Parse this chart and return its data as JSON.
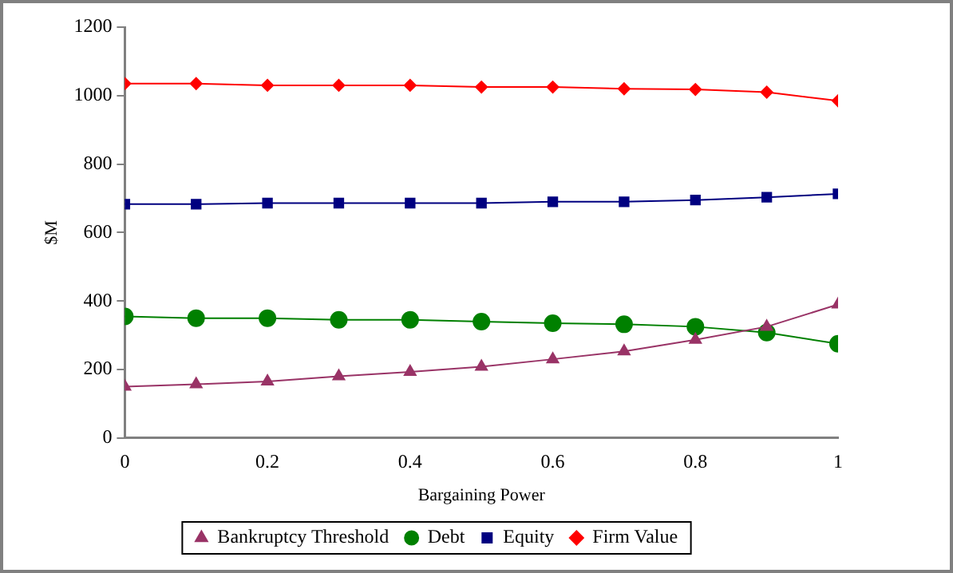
{
  "chart_data": {
    "type": "line",
    "xlabel": "Bargaining Power",
    "ylabel": "$M",
    "x": [
      0,
      0.1,
      0.2,
      0.3,
      0.4,
      0.5,
      0.6,
      0.7,
      0.8,
      0.9,
      1
    ],
    "xlim": [
      0,
      1
    ],
    "xticks": [
      0,
      0.2,
      0.4,
      0.6,
      0.8,
      1
    ],
    "ylim": [
      0,
      1200
    ],
    "yticks": [
      0,
      200,
      400,
      600,
      800,
      1000,
      1200
    ],
    "grid": false,
    "legend": "bottom",
    "line_style": "solid",
    "series": [
      {
        "name": "Bankruptcy Threshold",
        "color": "#993366",
        "marker": "triangle",
        "values": [
          150,
          157,
          165,
          180,
          193,
          208,
          230,
          253,
          287,
          325,
          390
        ]
      },
      {
        "name": "Debt",
        "color": "#008000",
        "marker": "circle",
        "values": [
          355,
          350,
          350,
          345,
          345,
          340,
          335,
          332,
          325,
          308,
          275
        ]
      },
      {
        "name": "Equity",
        "color": "#000080",
        "marker": "square",
        "values": [
          683,
          683,
          686,
          686,
          686,
          686,
          690,
          690,
          695,
          703,
          713
        ]
      },
      {
        "name": "Firm Value",
        "color": "#ff0000",
        "marker": "diamond",
        "values": [
          1035,
          1035,
          1030,
          1030,
          1030,
          1025,
          1025,
          1020,
          1018,
          1010,
          985
        ]
      }
    ]
  }
}
